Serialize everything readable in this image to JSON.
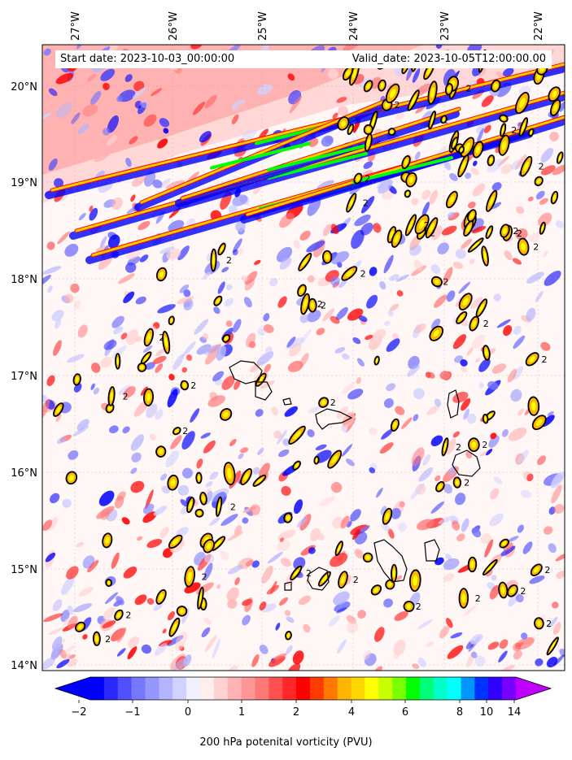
{
  "header": {
    "start_date": "Start date: 2023-10-03_00:00:00",
    "valid_date": "Valid_date: 2023-10-05T12:00:00.00"
  },
  "colorbar": {
    "title": "200 hPa potenital vorticity (PVU)",
    "tick_labels": [
      "−2",
      "−1",
      "0",
      "1",
      "2",
      "4",
      "6",
      "8",
      "10",
      "14"
    ],
    "level_colors": [
      "#0000ff",
      "#2828ff",
      "#5050ff",
      "#7878ff",
      "#9696ff",
      "#b4b4ff",
      "#d2d2ff",
      "#f0f0ff",
      "#ffeeee",
      "#ffd2d2",
      "#ffb4b4",
      "#ff9696",
      "#ff7878",
      "#ff5050",
      "#ff2828",
      "#ff0000",
      "#ff3c00",
      "#ff7800",
      "#ffb400",
      "#ffd700",
      "#ffff00",
      "#c8ff00",
      "#78ff00",
      "#00ff00",
      "#00ff78",
      "#00ffc8",
      "#00ffff",
      "#0096ff",
      "#0032ff",
      "#3200ff",
      "#7800ff"
    ],
    "under_color": "#0000ff",
    "over_color": "#c000ff"
  },
  "map": {
    "lon_labels": [
      "27°W",
      "26°W",
      "25°W",
      "24°W",
      "23°W",
      "22°W"
    ],
    "lat_labels": [
      "20°N",
      "19°N",
      "18°N",
      "17°N",
      "16°N",
      "15°N",
      "14°N"
    ],
    "contour_label": "2",
    "contour_level_pvu": 2,
    "contour_color": "#000000",
    "negative_color": "#0000ff",
    "positive_color": "#ff0000",
    "high_pv_color": "#00ff00"
  }
}
